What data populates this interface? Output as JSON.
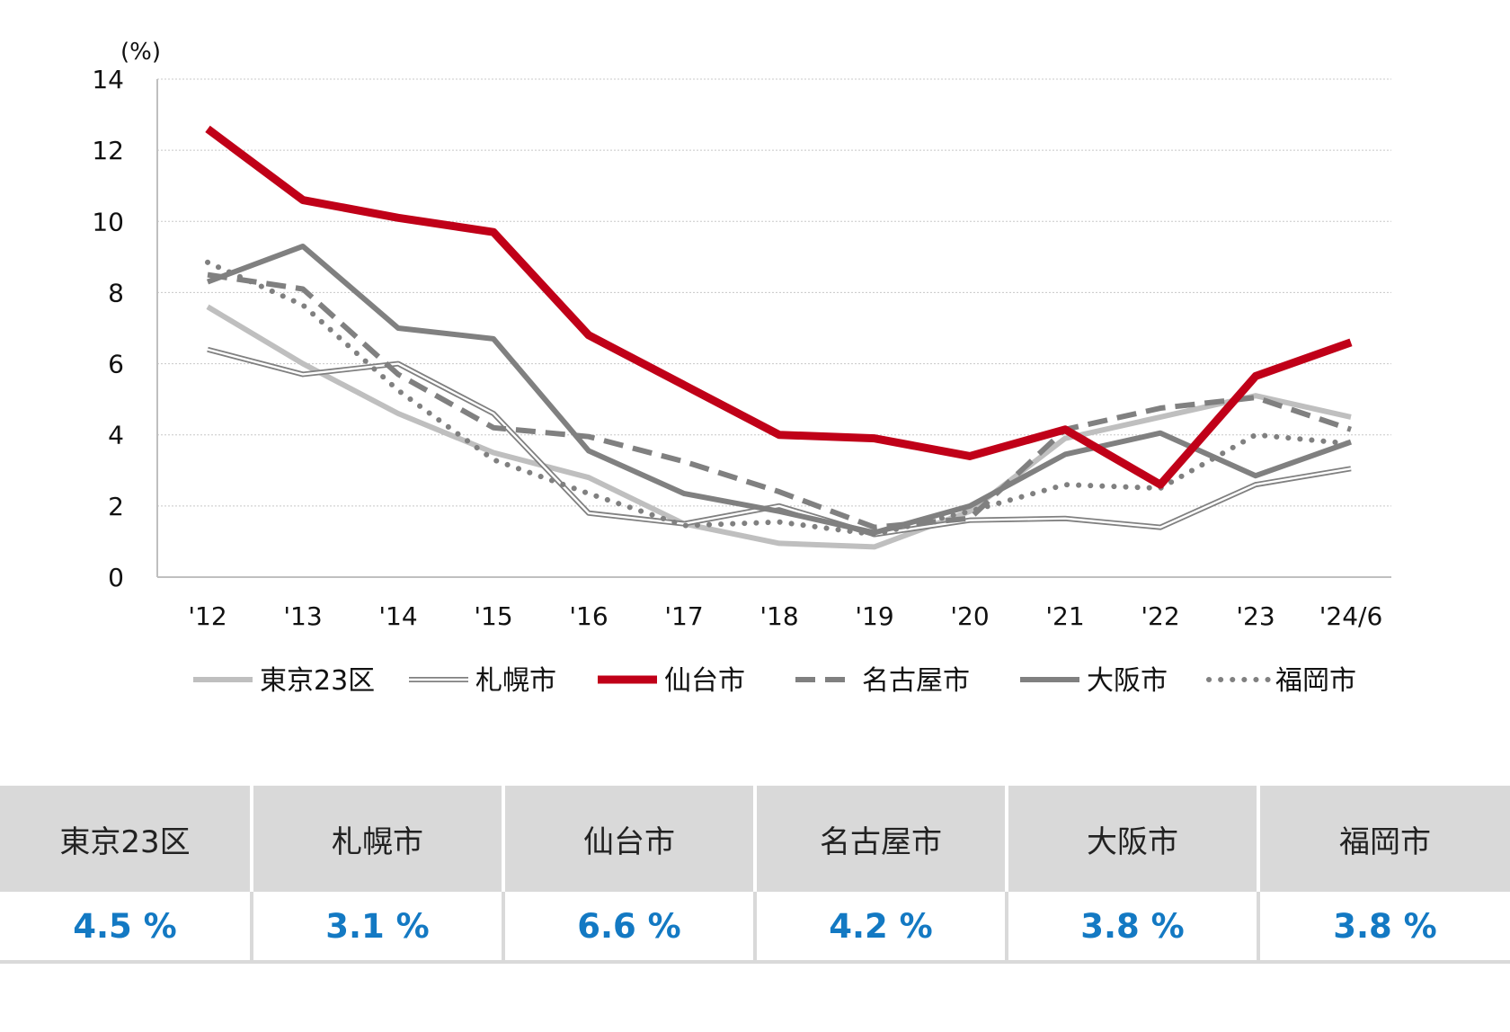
{
  "chart_data": {
    "type": "line",
    "ylabel": "(%)",
    "ylim": [
      0,
      14
    ],
    "yticks": [
      "0",
      "2",
      "4",
      "6",
      "8",
      "10",
      "12",
      "14"
    ],
    "categories": [
      "'12",
      "'13",
      "'14",
      "'15",
      "'16",
      "'17",
      "'18",
      "'19",
      "'20",
      "'21",
      "'22",
      "'23",
      "'24/6"
    ],
    "grid": true,
    "legend_position": "bottom",
    "series": [
      {
        "name": "東京23区",
        "color": "#bfbfbf",
        "style": "solid",
        "values": [
          7.6,
          6.0,
          4.6,
          3.5,
          2.8,
          1.5,
          0.95,
          0.85,
          1.85,
          3.9,
          4.5,
          5.1,
          4.5
        ]
      },
      {
        "name": "札幌市",
        "color": "#808080",
        "style": "double",
        "values": [
          6.4,
          5.7,
          6.0,
          4.6,
          1.8,
          1.5,
          2.0,
          1.2,
          1.6,
          1.65,
          1.4,
          2.6,
          3.05
        ]
      },
      {
        "name": "仙台市",
        "color": "#c00018",
        "style": "thick",
        "values": [
          12.6,
          10.6,
          10.1,
          9.7,
          6.8,
          5.4,
          4.0,
          3.9,
          3.4,
          4.15,
          2.6,
          5.65,
          6.6
        ]
      },
      {
        "name": "名古屋市",
        "color": "#808080",
        "style": "dashed",
        "values": [
          8.5,
          8.1,
          5.7,
          4.2,
          3.95,
          3.25,
          2.4,
          1.4,
          1.65,
          4.15,
          4.75,
          5.05,
          4.15
        ]
      },
      {
        "name": "大阪市",
        "color": "#808080",
        "style": "solid",
        "values": [
          8.3,
          9.3,
          7.0,
          6.7,
          3.55,
          2.35,
          1.85,
          1.25,
          2.0,
          3.45,
          4.05,
          2.85,
          3.8
        ]
      },
      {
        "name": "福岡市",
        "color": "#808080",
        "style": "dotted",
        "values": [
          8.85,
          7.65,
          5.25,
          3.3,
          2.35,
          1.45,
          1.55,
          1.2,
          1.85,
          2.6,
          2.5,
          4.0,
          3.75
        ]
      }
    ]
  },
  "table": {
    "headers": [
      "東京23区",
      "札幌市",
      "仙台市",
      "名古屋市",
      "大阪市",
      "福岡市"
    ],
    "values": [
      "4.5 %",
      "3.1 %",
      "6.6 %",
      "4.2 %",
      "3.8 %",
      "3.8 %"
    ]
  }
}
